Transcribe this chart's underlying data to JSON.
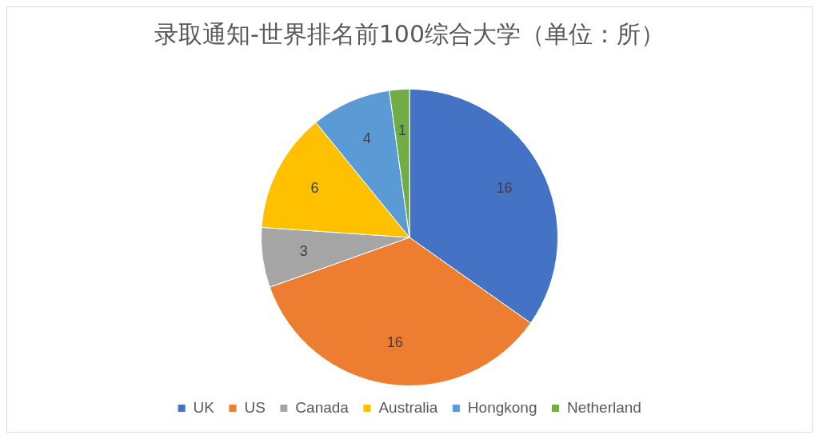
{
  "chart_data": {
    "type": "pie",
    "title": "录取通知-世界排名前100综合大学（单位：所）",
    "categories": [
      "UK",
      "US",
      "Canada",
      "Australia",
      "Hongkong",
      "Netherland"
    ],
    "values": [
      16,
      16,
      3,
      6,
      4,
      1
    ],
    "colors": [
      "#4472c4",
      "#ed7d31",
      "#a5a5a5",
      "#ffc000",
      "#5b9bd5",
      "#70ad47"
    ],
    "data_labels": true,
    "legend": "bottom"
  }
}
